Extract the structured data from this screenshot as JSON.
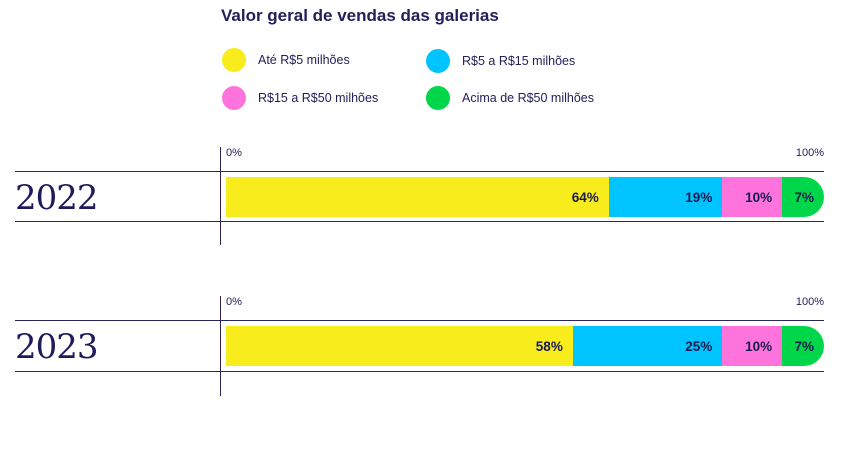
{
  "chart_data": {
    "type": "bar",
    "orientation": "horizontal",
    "stacked": true,
    "title": "Valor geral de vendas das galerias",
    "categories": [
      "2022",
      "2023"
    ],
    "xlim": [
      0,
      100
    ],
    "axis_ticks": {
      "min_label": "0%",
      "max_label": "100%"
    },
    "legend_position": "top",
    "series": [
      {
        "name": "Até R$5 milhões",
        "color": "#f8ec1c",
        "values": [
          64,
          58
        ],
        "labels": [
          "64%",
          "58%"
        ]
      },
      {
        "name": "R$5 a R$15 milhões",
        "color": "#00c4ff",
        "values": [
          19,
          25
        ],
        "labels": [
          "19%",
          "25%"
        ]
      },
      {
        "name": "R$15 a R$50 milhões",
        "color": "#ff74dc",
        "values": [
          10,
          10
        ],
        "labels": [
          "10%",
          "10%"
        ]
      },
      {
        "name": "Acima de R$50 milhões",
        "color": "#00d64a",
        "values": [
          7,
          7
        ],
        "labels": [
          "7%",
          "7%"
        ]
      }
    ]
  }
}
